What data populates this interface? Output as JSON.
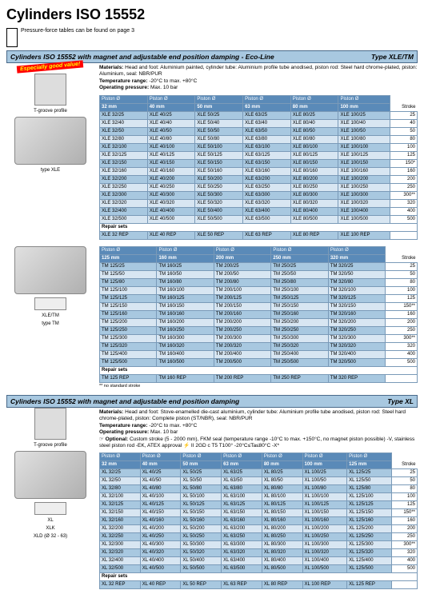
{
  "page_title": "Cylinders ISO 15552",
  "note": "Pressure-force tables can be found on page 3",
  "sections": [
    {
      "header": "Cylinders ISO 15552 with magnet and adjustable end position damping - Eco-Line",
      "type": "Type XLE/TM",
      "materials": "Head and foot: Aluminium painted, cylinder tube: Aluminium profile tube anodised, piston rod: Steel hard chrome-plated, piston: Aluminium, seal: NBR/PUR",
      "temp": "-20°C to max. +80°C",
      "pressure": "Max. 10 bar",
      "left_images": [
        {
          "label": "Especially good value!",
          "type": "badge"
        },
        {
          "label": "T-groove profile",
          "type": "profile"
        },
        {
          "label": "",
          "type": "cylinder"
        },
        {
          "label": "type XLE",
          "type": "caption"
        }
      ],
      "table1": {
        "headers": [
          "Piston Ø\n32 mm",
          "Piston Ø\n40 mm",
          "Piston Ø\n50 mm",
          "Piston Ø\n63 mm",
          "Piston Ø\n80 mm",
          "Piston Ø\n100 mm",
          "Stroke"
        ],
        "rows": [
          [
            "XLE 32/25",
            "XLE 40/25",
            "XLE 50/25",
            "XLE 63/25",
            "XLE 80/25",
            "XLE 100/25",
            "25"
          ],
          [
            "XLE 32/40",
            "XLE 40/40",
            "XLE 50/40",
            "XLE 63/40",
            "XLE 80/40",
            "XLE 100/40",
            "40"
          ],
          [
            "XLE 32/50",
            "XLE 40/50",
            "XLE 50/50",
            "XLE 63/50",
            "XLE 80/50",
            "XLE 100/50",
            "50"
          ],
          [
            "XLE 32/80",
            "XLE 40/80",
            "XLE 50/80",
            "XLE 63/80",
            "XLE 80/80",
            "XLE 100/80",
            "80"
          ],
          [
            "XLE 32/100",
            "XLE 40/100",
            "XLE 50/100",
            "XLE 63/100",
            "XLE 80/100",
            "XLE 100/100",
            "100"
          ],
          [
            "XLE 32/125",
            "XLE 40/125",
            "XLE 50/125",
            "XLE 63/125",
            "XLE 80/125",
            "XLE 100/125",
            "125"
          ],
          [
            "XLE 32/150",
            "XLE 40/150",
            "XLE 50/150",
            "XLE 63/150",
            "XLE 80/150",
            "XLE 100/150",
            "150*"
          ],
          [
            "XLE 32/160",
            "XLE 40/160",
            "XLE 50/160",
            "XLE 63/160",
            "XLE 80/160",
            "XLE 100/160",
            "160"
          ],
          [
            "XLE 32/200",
            "XLE 40/200",
            "XLE 50/200",
            "XLE 63/200",
            "XLE 80/200",
            "XLE 100/200",
            "200"
          ],
          [
            "XLE 32/250",
            "XLE 40/250",
            "XLE 50/250",
            "XLE 63/250",
            "XLE 80/250",
            "XLE 100/250",
            "250"
          ],
          [
            "XLE 32/300",
            "XLE 40/300",
            "XLE 50/300",
            "XLE 63/300",
            "XLE 80/300",
            "XLE 100/300",
            "300**"
          ],
          [
            "XLE 32/320",
            "XLE 40/320",
            "XLE 50/320",
            "XLE 63/320",
            "XLE 80/320",
            "XLE 100/320",
            "320"
          ],
          [
            "XLE 32/400",
            "XLE 40/400",
            "XLE 50/400",
            "XLE 63/400",
            "XLE 80/400",
            "XLE 100/400",
            "400"
          ],
          [
            "XLE 32/500",
            "XLE 40/500",
            "XLE 50/500",
            "XLE 63/500",
            "XLE 80/500",
            "XLE 100/500",
            "500"
          ]
        ],
        "repair_label": "Repair sets",
        "repair": [
          "XLE 32 REP",
          "XLE 40 REP",
          "XLE 50 REP",
          "XLE 63 REP",
          "XLE 80 REP",
          "XLE 100 REP",
          ""
        ]
      },
      "table2": {
        "headers": [
          "Piston Ø\n125 mm",
          "Piston Ø\n160 mm",
          "Piston Ø\n200 mm",
          "Piston Ø\n250 mm",
          "Piston Ø\n320 mm",
          "Stroke"
        ],
        "rows": [
          [
            "TM 125/25",
            "TM 160/25",
            "TM 200/25",
            "TM 250/25",
            "TM 320/25",
            "25"
          ],
          [
            "TM 125/50",
            "TM 160/50",
            "TM 200/50",
            "TM 250/50",
            "TM 320/50",
            "50"
          ],
          [
            "TM 125/80",
            "TM 160/80",
            "TM 200/80",
            "TM 250/80",
            "TM 320/80",
            "80"
          ],
          [
            "TM 125/100",
            "TM 160/100",
            "TM 200/100",
            "TM 250/100",
            "TM 320/100",
            "100"
          ],
          [
            "TM 125/125",
            "TM 160/125",
            "TM 200/125",
            "TM 250/125",
            "TM 320/125",
            "125"
          ],
          [
            "TM 125/150",
            "TM 160/150",
            "TM 200/150",
            "TM 250/150",
            "TM 320/150",
            "150**"
          ],
          [
            "TM 125/160",
            "TM 160/160",
            "TM 200/160",
            "TM 250/160",
            "TM 320/160",
            "160"
          ],
          [
            "TM 125/200",
            "TM 160/200",
            "TM 200/200",
            "TM 250/200",
            "TM 320/200",
            "200"
          ],
          [
            "TM 125/250",
            "TM 160/250",
            "TM 200/250",
            "TM 250/250",
            "TM 320/250",
            "250"
          ],
          [
            "TM 125/300",
            "TM 160/300",
            "TM 200/300",
            "TM 250/300",
            "TM 320/300",
            "300**"
          ],
          [
            "TM 125/320",
            "TM 160/320",
            "TM 200/320",
            "TM 250/320",
            "TM 320/320",
            "320"
          ],
          [
            "TM 125/400",
            "TM 160/400",
            "TM 200/400",
            "TM 250/400",
            "TM 320/400",
            "400"
          ],
          [
            "TM 125/500",
            "TM 160/500",
            "TM 200/500",
            "TM 250/500",
            "TM 320/500",
            "500"
          ]
        ],
        "repair_label": "Repair sets",
        "repair": [
          "TM 125 REP",
          "TM 160 REP",
          "TM 200 REP",
          "TM 250 REP",
          "TM 320 REP",
          ""
        ],
        "footnote": "** no standard stroke"
      },
      "left_images2": [
        {
          "label": "",
          "type": "cylinder"
        },
        {
          "label": "XLE/TM",
          "type": "caption-left"
        },
        {
          "label": "type TM",
          "type": "caption"
        }
      ]
    },
    {
      "header": "Cylinders ISO 15552 with magnet and adjustable end position damping",
      "type": "Type XL",
      "materials": "Head and foot: Stove-enamelled die-cast aluminium, cylinder tube: Aluminium profile tube anodised, piston rod: Steel hard chrome-plated, piston: Complete piston (ST/NBR), seal: NBR/PUR",
      "temp": "-20°C to max. +80°C",
      "pressure": "Max. 10 bar",
      "optional": "Custom stroke (5 - 2000 mm), FKM seal (temperature range -10°C to max. +150°C, no magnet piston possible) -V, stainless steel piston rod -EK, ATEX approval ⚡ II 2GD c T5 T100° -20°C≤Ta≤80°C -X*",
      "left_images": [
        {
          "label": "T-groove profile",
          "type": "profile"
        },
        {
          "label": "",
          "type": "cylinder"
        },
        {
          "label": "XL",
          "type": "caption-left"
        },
        {
          "label": "XLK",
          "type": "caption"
        },
        {
          "label": "XLD (Ø 32 - 63)",
          "type": "caption"
        }
      ],
      "table1": {
        "headers": [
          "Piston Ø\n32 mm",
          "Piston Ø\n40 mm",
          "Piston Ø\n50 mm",
          "Piston Ø\n63 mm",
          "Piston Ø\n80 mm",
          "Piston Ø\n100 mm",
          "Piston Ø\n125 mm",
          "Stroke"
        ],
        "rows": [
          [
            "XL 32/25",
            "XL 40/25",
            "XL 50/25",
            "XL 63/25",
            "XL 80/25",
            "XL 100/25",
            "XL 125/25",
            "25"
          ],
          [
            "XL 32/50",
            "XL 40/50",
            "XL 50/50",
            "XL 63/50",
            "XL 80/50",
            "XL 100/50",
            "XL 125/50",
            "50"
          ],
          [
            "XL 32/80",
            "XL 40/80",
            "XL 50/80",
            "XL 63/80",
            "XL 80/80",
            "XL 100/80",
            "XL 125/80",
            "80"
          ],
          [
            "XL 32/100",
            "XL 40/100",
            "XL 50/100",
            "XL 63/100",
            "XL 80/100",
            "XL 100/100",
            "XL 125/100",
            "100"
          ],
          [
            "XL 32/125",
            "XL 40/125",
            "XL 50/125",
            "XL 63/125",
            "XL 80/125",
            "XL 100/125",
            "XL 125/125",
            "125"
          ],
          [
            "XL 32/150",
            "XL 40/150",
            "XL 50/150",
            "XL 63/150",
            "XL 80/150",
            "XL 100/150",
            "XL 125/150",
            "150**"
          ],
          [
            "XL 32/160",
            "XL 40/160",
            "XL 50/160",
            "XL 63/160",
            "XL 80/160",
            "XL 100/160",
            "XL 125/160",
            "160"
          ],
          [
            "XL 32/200",
            "XL 40/200",
            "XL 50/200",
            "XL 63/200",
            "XL 80/200",
            "XL 100/200",
            "XL 125/200",
            "200"
          ],
          [
            "XL 32/250",
            "XL 40/250",
            "XL 50/250",
            "XL 63/250",
            "XL 80/250",
            "XL 100/250",
            "XL 125/250",
            "250"
          ],
          [
            "XL 32/300",
            "XL 40/300",
            "XL 50/300",
            "XL 63/300",
            "XL 80/300",
            "XL 100/300",
            "XL 125/300",
            "300**"
          ],
          [
            "XL 32/320",
            "XL 40/320",
            "XL 50/320",
            "XL 63/320",
            "XL 80/320",
            "XL 100/320",
            "XL 125/320",
            "320"
          ],
          [
            "XL 32/400",
            "XL 40/400",
            "XL 50/400",
            "XL 63/400",
            "XL 80/400",
            "XL 100/400",
            "XL 125/400",
            "400"
          ],
          [
            "XL 32/500",
            "XL 40/500",
            "XL 50/500",
            "XL 63/500",
            "XL 80/500",
            "XL 100/500",
            "XL 125/500",
            "500"
          ]
        ],
        "repair_label": "Repair sets",
        "repair": [
          "XL 32 REP",
          "XL 40 REP",
          "XL 50 REP",
          "XL 63 REP",
          "XL 80 REP",
          "XL 100 REP",
          "XL 125 REP",
          ""
        ]
      }
    }
  ],
  "colors": {
    "header_bg": "#a8c8e0",
    "th_bg": "#5a8ab8",
    "dark_row": "#a8c8e0",
    "light_row": "#d8e6f2",
    "border": "#7a9ab8"
  }
}
